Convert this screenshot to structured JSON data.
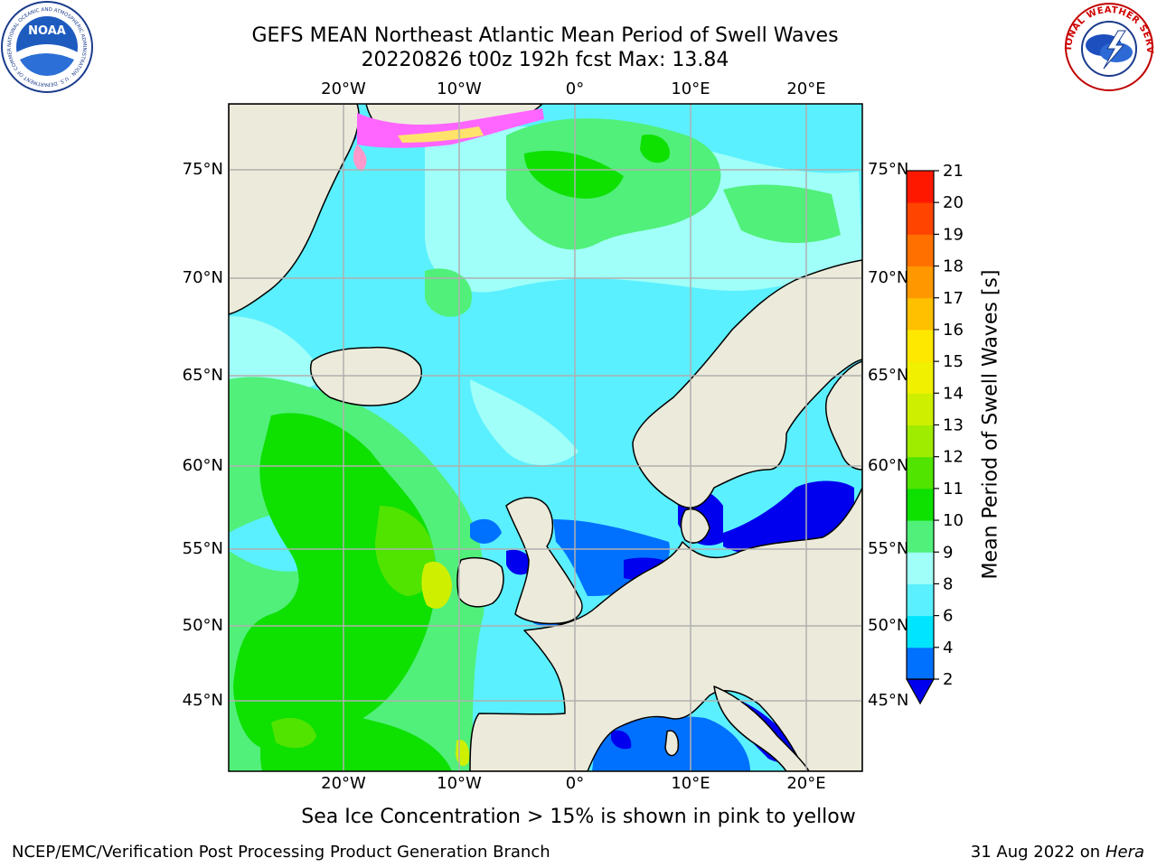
{
  "title": {
    "line1": "GEFS MEAN Northeast Atlantic Mean Period of Swell Waves",
    "line2": "20220826 t00z 192h fcst   Max: 13.84"
  },
  "map": {
    "lon_ticks_top": [
      "20°W",
      "10°W",
      "0°",
      "10°E",
      "20°E"
    ],
    "lon_ticks_bottom": [
      "20°W",
      "10°W",
      "0°",
      "10°E",
      "20°E"
    ],
    "lat_ticks_left": [
      "75°N",
      "70°N",
      "65°N",
      "60°N",
      "55°N",
      "50°N",
      "45°N"
    ],
    "lat_ticks_right": [
      "75°N",
      "70°N",
      "65°N",
      "60°N",
      "55°N",
      "50°N",
      "45°N"
    ],
    "region": "Northeast Atlantic",
    "colors": {
      "land": "#ecebdb",
      "grid": "#b0b0b0",
      "coast": "#000000"
    }
  },
  "colorbar": {
    "label": "Mean Period of Swell Waves [s]",
    "ticks": [
      "21",
      "20",
      "19",
      "18",
      "17",
      "16",
      "15",
      "14",
      "13",
      "12",
      "11",
      "10",
      "9",
      "8",
      "6",
      "4",
      "2"
    ],
    "colors_bottom_to_top": [
      "#0070ff",
      "#00e4ff",
      "#5af0ff",
      "#a0fff8",
      "#50f07a",
      "#0ee000",
      "#50e400",
      "#a0ec00",
      "#cef000",
      "#f0f000",
      "#ffe800",
      "#ffc000",
      "#ff9800",
      "#ff7000",
      "#ff4400",
      "#ff1800"
    ],
    "extend_below_color": "#0000ee"
  },
  "caption": "Sea Ice Concentration > 15% is shown in pink to yellow",
  "footer": {
    "left": "NCEP/EMC/Verification Post Processing Product Generation Branch",
    "right_date": "31 Aug 2022 on",
    "right_host": "Hera"
  },
  "logos": {
    "left": "NOAA",
    "right": "NATIONAL WEATHER SERVICE"
  }
}
